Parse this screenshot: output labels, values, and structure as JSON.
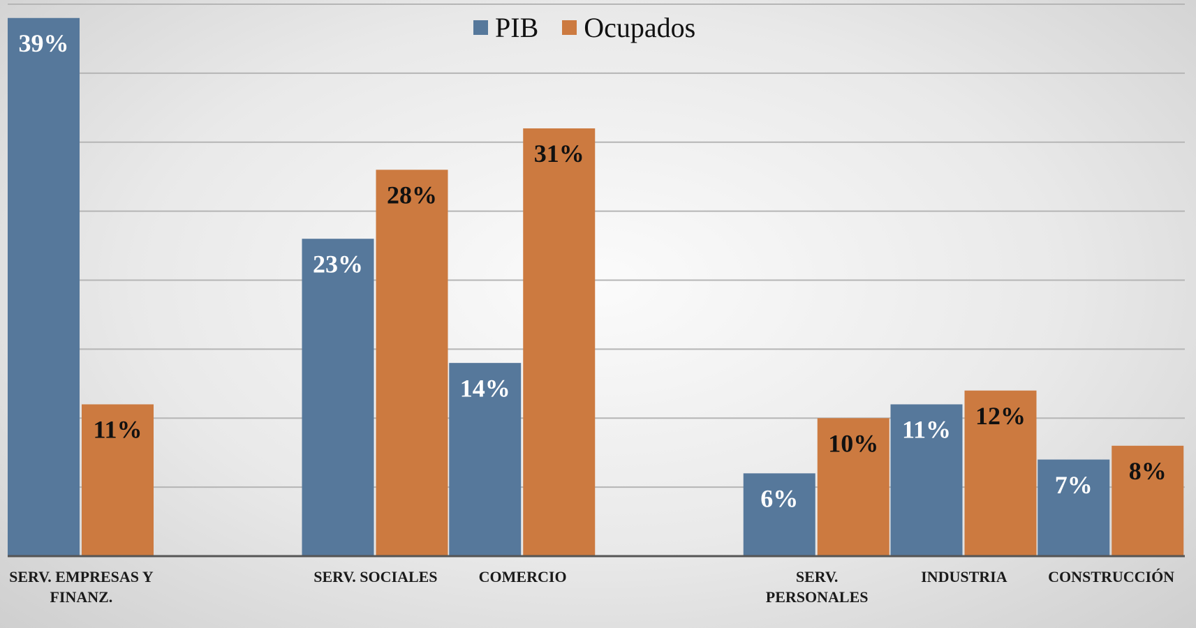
{
  "chart_data": {
    "type": "bar",
    "categories": [
      "SERV. EMPRESAS Y FINANZ.",
      null,
      "SERV. SOCIALES",
      "COMERCIO",
      null,
      "SERV. PERSONALES",
      "INDUSTRIA",
      "CONSTRUCCIÓN"
    ],
    "series": [
      {
        "name": "PIB",
        "color": "#56789b",
        "label_color": "#ffffff",
        "values": [
          39,
          null,
          23,
          14,
          null,
          6,
          11,
          7
        ],
        "value_labels": [
          "39%",
          null,
          "23%",
          "14%",
          null,
          "6%",
          "11%",
          "7%"
        ]
      },
      {
        "name": "Ocupados",
        "color": "#cc7a40",
        "label_color": "#111111",
        "values": [
          11,
          null,
          28,
          31,
          null,
          10,
          12,
          8
        ],
        "value_labels": [
          "11%",
          null,
          "28%",
          "31%",
          null,
          "10%",
          "12%",
          "8%"
        ]
      }
    ],
    "ylim": [
      0,
      40
    ],
    "yticks": [
      0,
      5,
      10,
      15,
      20,
      25,
      30,
      35,
      40
    ],
    "grid": true,
    "legend": "top"
  }
}
